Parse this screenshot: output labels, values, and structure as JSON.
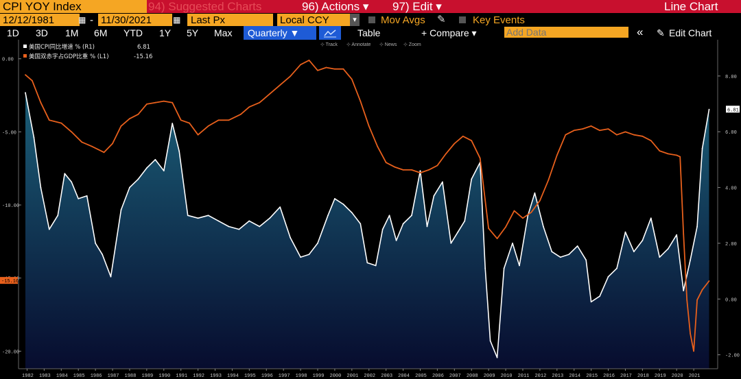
{
  "header": {
    "ticker": "CPI YOY Index",
    "suggested": "94) Suggested Charts",
    "actions": "96) Actions ▾",
    "edit": "97) Edit ▾",
    "chart_type": "Line Chart"
  },
  "controls": {
    "start_date": "12/12/1981",
    "dash": "-",
    "end_date": "11/30/2021",
    "price_field": "Last Px",
    "currency": "Local CCY",
    "currency_arrow": "▾",
    "mov_avgs": "Mov Avgs",
    "key_events": "Key Events"
  },
  "toolbar": {
    "periods": [
      "1D",
      "3D",
      "1M",
      "6M",
      "YTD",
      "1Y",
      "5Y",
      "Max"
    ],
    "frequency": "Quarterly ▼",
    "table": "Table",
    "compare": "+ Compare ▾",
    "add_data_placeholder": "Add Data",
    "collapse": "«",
    "edit_chart": "Edit Chart"
  },
  "chart_hints": [
    "Track",
    "Annotate",
    "News",
    "Zoom"
  ],
  "colors": {
    "cpi": "#ffffff",
    "deficit": "#e8601c",
    "area_top": "#1b5f78",
    "area_bottom": "#070c2e",
    "header_red": "#c8102e",
    "amber": "#f5a623"
  },
  "chart_data": {
    "type": "line",
    "title": "CPI YOY Index",
    "series": [
      {
        "name": "美国CPI同比增速 % (R1)",
        "last_label": "6.81",
        "axis": "right",
        "x": [
          1981.9,
          1982.4,
          1982.8,
          1983.3,
          1983.8,
          1984.2,
          1984.6,
          1985.0,
          1985.5,
          1986.0,
          1986.4,
          1986.9,
          1987.5,
          1988.0,
          1988.5,
          1989.0,
          1989.5,
          1990.0,
          1990.5,
          1990.9,
          1991.4,
          1992.0,
          1992.6,
          1993.2,
          1993.8,
          1994.4,
          1995.0,
          1995.6,
          1996.2,
          1996.8,
          1997.4,
          1998.0,
          1998.5,
          1999.0,
          1999.6,
          2000.0,
          2000.5,
          2001.0,
          2001.5,
          2001.9,
          2002.4,
          2002.8,
          2003.2,
          2003.6,
          2004.0,
          2004.5,
          2005.0,
          2005.4,
          2005.8,
          2006.3,
          2006.8,
          2007.2,
          2007.6,
          2008.0,
          2008.5,
          2008.8,
          2009.1,
          2009.5,
          2009.9,
          2010.4,
          2010.8,
          2011.3,
          2011.7,
          2012.2,
          2012.7,
          2013.2,
          2013.7,
          2014.2,
          2014.7,
          2015.0,
          2015.5,
          2016.0,
          2016.5,
          2017.0,
          2017.5,
          2018.0,
          2018.5,
          2019.0,
          2019.5,
          2020.0,
          2020.4,
          2020.8,
          2021.2,
          2021.5,
          2021.9
        ],
        "values": [
          7.4,
          5.8,
          4.0,
          2.5,
          3.0,
          4.5,
          4.2,
          3.6,
          3.7,
          2.0,
          1.6,
          0.8,
          3.2,
          4.0,
          4.3,
          4.7,
          5.0,
          4.6,
          6.3,
          5.3,
          3.0,
          2.9,
          3.0,
          2.8,
          2.6,
          2.5,
          2.8,
          2.6,
          2.9,
          3.3,
          2.2,
          1.5,
          1.6,
          2.0,
          3.0,
          3.6,
          3.4,
          3.1,
          2.7,
          1.3,
          1.2,
          2.5,
          3.0,
          2.1,
          2.7,
          3.0,
          4.6,
          2.6,
          3.7,
          4.2,
          2.0,
          2.4,
          2.8,
          4.3,
          4.9,
          1.1,
          -1.5,
          -2.1,
          1.1,
          2.0,
          1.2,
          3.0,
          3.8,
          2.6,
          1.7,
          1.5,
          1.6,
          1.9,
          1.4,
          -0.1,
          0.1,
          0.8,
          1.1,
          2.4,
          1.7,
          2.1,
          2.9,
          1.5,
          1.8,
          2.3,
          0.3,
          1.4,
          2.6,
          5.4,
          6.8
        ]
      },
      {
        "name": "美国双赤字占GDP比重 % (L1)",
        "last_label": "-15.16",
        "axis": "left",
        "x": [
          1981.9,
          1982.3,
          1982.8,
          1983.3,
          1984.0,
          1984.6,
          1985.2,
          1985.8,
          1986.5,
          1987.0,
          1987.5,
          1988.0,
          1988.5,
          1989.0,
          1989.5,
          1990.0,
          1990.5,
          1991.0,
          1991.5,
          1992.0,
          1992.6,
          1993.2,
          1993.8,
          1994.5,
          1995.0,
          1995.6,
          1996.2,
          1996.8,
          1997.4,
          1998.0,
          1998.5,
          1999.0,
          1999.5,
          2000.0,
          2000.5,
          2001.0,
          2001.5,
          2002.0,
          2002.5,
          2003.0,
          2003.5,
          2004.0,
          2004.5,
          2005.0,
          2005.5,
          2006.0,
          2006.5,
          2007.0,
          2007.5,
          2008.0,
          2008.5,
          2009.0,
          2009.5,
          2010.0,
          2010.5,
          2011.0,
          2011.5,
          2012.0,
          2012.5,
          2013.0,
          2013.5,
          2014.0,
          2014.5,
          2015.0,
          2015.5,
          2016.0,
          2016.5,
          2017.0,
          2017.5,
          2018.0,
          2018.5,
          2019.0,
          2019.5,
          2020.0,
          2020.2,
          2020.4,
          2020.6,
          2020.8,
          2021.0,
          2021.2,
          2021.5,
          2021.9
        ],
        "values": [
          -1.1,
          -1.5,
          -3.0,
          -4.2,
          -4.4,
          -5.0,
          -5.7,
          -6.0,
          -6.4,
          -5.8,
          -4.6,
          -4.1,
          -3.8,
          -3.1,
          -3.0,
          -2.9,
          -3.0,
          -4.2,
          -4.4,
          -5.2,
          -4.6,
          -4.2,
          -4.2,
          -3.8,
          -3.3,
          -3.0,
          -2.4,
          -1.8,
          -1.2,
          -0.4,
          -0.1,
          -0.8,
          -0.6,
          -0.7,
          -0.7,
          -1.4,
          -2.9,
          -4.6,
          -6.0,
          -7.1,
          -7.4,
          -7.6,
          -7.6,
          -7.8,
          -7.6,
          -7.3,
          -6.5,
          -5.8,
          -5.3,
          -5.6,
          -6.8,
          -11.6,
          -12.3,
          -11.5,
          -10.4,
          -10.9,
          -10.5,
          -9.7,
          -8.3,
          -6.6,
          -5.2,
          -4.9,
          -4.8,
          -4.6,
          -4.9,
          -4.8,
          -5.2,
          -5.0,
          -5.2,
          -5.3,
          -5.6,
          -6.3,
          -6.5,
          -6.6,
          -6.7,
          -12.0,
          -16.5,
          -18.8,
          -20.0,
          -16.5,
          -15.8,
          -15.2
        ]
      }
    ],
    "left_axis": {
      "ylim": [
        -21.2,
        1.3
      ],
      "ticks": [
        0,
        -5,
        -10,
        -15,
        -20
      ],
      "tick_labels": [
        "0.00",
        "-5.00",
        "-10.00",
        "-15.00",
        "-20.00"
      ],
      "highlight_label": "-15.16"
    },
    "right_axis": {
      "ylim": [
        -2.5,
        9.3
      ],
      "ticks": [
        8,
        6,
        4,
        2,
        0,
        -2
      ],
      "tick_labels": [
        "8.00",
        "6.00",
        "4.00",
        "2.00",
        "0.00",
        "-2.00"
      ],
      "highlight_label": "6.81"
    },
    "x_ticks": [
      1982,
      1983,
      1984,
      1985,
      1986,
      1987,
      1988,
      1989,
      1990,
      1991,
      1992,
      1993,
      1994,
      1995,
      1996,
      1997,
      1998,
      1999,
      2000,
      2001,
      2002,
      2003,
      2004,
      2005,
      2006,
      2007,
      2008,
      2009,
      2010,
      2011,
      2012,
      2013,
      2014,
      2015,
      2016,
      2017,
      2018,
      2019,
      2020,
      2021
    ],
    "x_tick_labels": [
      "1982",
      "1983",
      "1984",
      "1985",
      "1986",
      "1987",
      "1988",
      "1989",
      "1990",
      "1991",
      "1992",
      "1993",
      "1994",
      "1995",
      "1996",
      "1997",
      "1998",
      "1999",
      "2000",
      "2001",
      "2002",
      "2003",
      "2004",
      "2005",
      "2006",
      "2007",
      "2008",
      "2009",
      "2010",
      "2011",
      "2012",
      "2013",
      "2014",
      "2015",
      "2016",
      "2017",
      "2018",
      "2019",
      "2020",
      "2021"
    ],
    "xlim": [
      1981.5,
      2022.4
    ],
    "grid": false
  }
}
